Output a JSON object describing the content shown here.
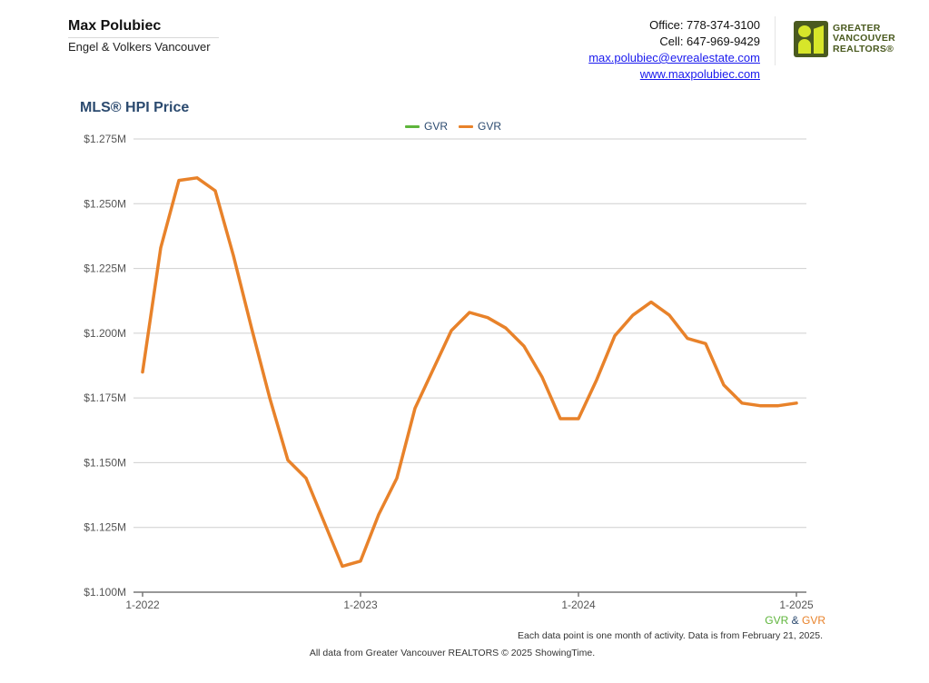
{
  "agent": {
    "name": "Max Polubiec",
    "company": "Engel & Volkers Vancouver"
  },
  "contact": {
    "office": "Office: 778-374-3100",
    "cell": "Cell: 647-969-9429",
    "email": "max.polubiec@evrealestate.com",
    "website": "www.maxpolubiec.com"
  },
  "logo": {
    "line1": "GREATER",
    "line2": "VANCOUVER",
    "line3": "REALTORS®"
  },
  "colors": {
    "series_green": "#5eb53b",
    "series_orange": "#e8822a",
    "title_blue": "#2b4a6f"
  },
  "chart_data": {
    "type": "line",
    "title": "MLS® HPI Price",
    "xlabel": "",
    "ylabel": "",
    "ylim": [
      1.1,
      1.275
    ],
    "y_unit": "$M",
    "y_ticks": [
      "$1.100M",
      "$1.125M",
      "$1.150M",
      "$1.175M",
      "$1.200M",
      "$1.225M",
      "$1.250M",
      "$1.275M"
    ],
    "x_ticks": [
      "1-2022",
      "1-2023",
      "1-2024",
      "1-2025"
    ],
    "grid": true,
    "legend_position": "top",
    "legend": [
      {
        "name": "GVR",
        "color": "#5eb53b"
      },
      {
        "name": "GVR",
        "color": "#e8822a"
      }
    ],
    "x": [
      "1-2022",
      "2-2022",
      "3-2022",
      "4-2022",
      "5-2022",
      "6-2022",
      "7-2022",
      "8-2022",
      "9-2022",
      "10-2022",
      "11-2022",
      "12-2022",
      "1-2023",
      "2-2023",
      "3-2023",
      "4-2023",
      "5-2023",
      "6-2023",
      "7-2023",
      "8-2023",
      "9-2023",
      "10-2023",
      "11-2023",
      "12-2023",
      "1-2024",
      "2-2024",
      "3-2024",
      "4-2024",
      "5-2024",
      "6-2024",
      "7-2024",
      "8-2024",
      "9-2024",
      "10-2024",
      "11-2024",
      "12-2024",
      "1-2025"
    ],
    "series": [
      {
        "name": "GVR",
        "color": "#e8822a",
        "values": [
          1.185,
          1.233,
          1.259,
          1.26,
          1.255,
          1.23,
          1.202,
          1.175,
          1.151,
          1.144,
          1.127,
          1.11,
          1.112,
          1.13,
          1.144,
          1.171,
          1.186,
          1.201,
          1.208,
          1.206,
          1.202,
          1.195,
          1.183,
          1.167,
          1.167,
          1.182,
          1.199,
          1.207,
          1.212,
          1.207,
          1.198,
          1.196,
          1.18,
          1.173,
          1.172,
          1.172,
          1.173
        ]
      }
    ]
  },
  "series_note": {
    "s1": "GVR",
    "amp": "&",
    "s2": "GVR"
  },
  "footnote": "Each data point is one month of activity. Data is from February 21, 2025.",
  "source": "All data from Greater Vancouver REALTORS © 2025 ShowingTime."
}
